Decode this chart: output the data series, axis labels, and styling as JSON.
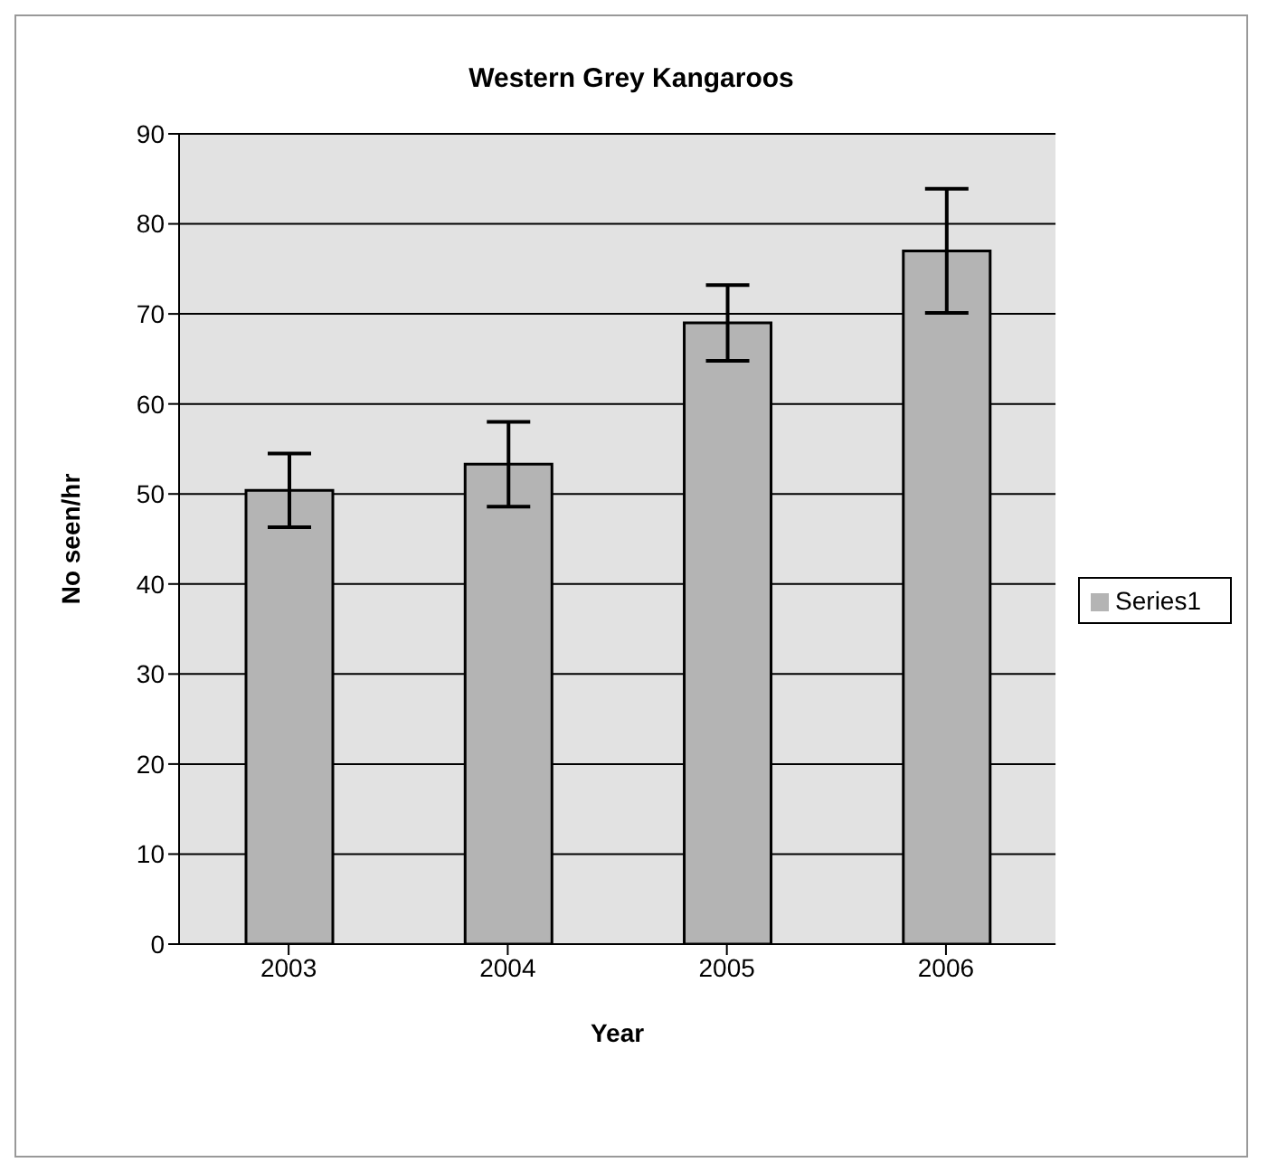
{
  "chart_data": {
    "type": "bar",
    "title": "Western Grey Kangaroos",
    "xlabel": "Year",
    "ylabel": "No seen/hr",
    "categories": [
      "2003",
      "2004",
      "2005",
      "2006"
    ],
    "series": [
      {
        "name": "Series1",
        "color": "#b4b4b4",
        "values": [
          50.4,
          53.3,
          69,
          77
        ],
        "errors": [
          4.1,
          4.7,
          4.2,
          6.9
        ]
      }
    ],
    "ylim": [
      0,
      90
    ],
    "yticks": [
      0,
      10,
      20,
      30,
      40,
      50,
      60,
      70,
      80,
      90
    ],
    "grid": "y",
    "legend": "right"
  }
}
